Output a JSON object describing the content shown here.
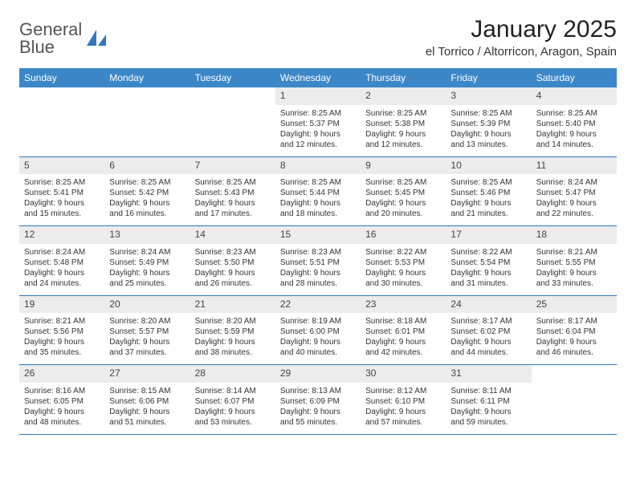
{
  "logo": {
    "line1": "General",
    "line2": "Blue"
  },
  "title": "January 2025",
  "location": "el Torrico / Altorricon, Aragon, Spain",
  "colors": {
    "header_bg": "#3b87c8",
    "header_text": "#ffffff",
    "daynum_bg": "#ececec",
    "rule": "#2f78bc",
    "logo_blue": "#2f78bc"
  },
  "day_headers": [
    "Sunday",
    "Monday",
    "Tuesday",
    "Wednesday",
    "Thursday",
    "Friday",
    "Saturday"
  ],
  "weeks": [
    [
      null,
      null,
      null,
      {
        "n": "1",
        "sr": "8:25 AM",
        "ss": "5:37 PM",
        "dl": "9 hours and 12 minutes."
      },
      {
        "n": "2",
        "sr": "8:25 AM",
        "ss": "5:38 PM",
        "dl": "9 hours and 12 minutes."
      },
      {
        "n": "3",
        "sr": "8:25 AM",
        "ss": "5:39 PM",
        "dl": "9 hours and 13 minutes."
      },
      {
        "n": "4",
        "sr": "8:25 AM",
        "ss": "5:40 PM",
        "dl": "9 hours and 14 minutes."
      }
    ],
    [
      {
        "n": "5",
        "sr": "8:25 AM",
        "ss": "5:41 PM",
        "dl": "9 hours and 15 minutes."
      },
      {
        "n": "6",
        "sr": "8:25 AM",
        "ss": "5:42 PM",
        "dl": "9 hours and 16 minutes."
      },
      {
        "n": "7",
        "sr": "8:25 AM",
        "ss": "5:43 PM",
        "dl": "9 hours and 17 minutes."
      },
      {
        "n": "8",
        "sr": "8:25 AM",
        "ss": "5:44 PM",
        "dl": "9 hours and 18 minutes."
      },
      {
        "n": "9",
        "sr": "8:25 AM",
        "ss": "5:45 PM",
        "dl": "9 hours and 20 minutes."
      },
      {
        "n": "10",
        "sr": "8:25 AM",
        "ss": "5:46 PM",
        "dl": "9 hours and 21 minutes."
      },
      {
        "n": "11",
        "sr": "8:24 AM",
        "ss": "5:47 PM",
        "dl": "9 hours and 22 minutes."
      }
    ],
    [
      {
        "n": "12",
        "sr": "8:24 AM",
        "ss": "5:48 PM",
        "dl": "9 hours and 24 minutes."
      },
      {
        "n": "13",
        "sr": "8:24 AM",
        "ss": "5:49 PM",
        "dl": "9 hours and 25 minutes."
      },
      {
        "n": "14",
        "sr": "8:23 AM",
        "ss": "5:50 PM",
        "dl": "9 hours and 26 minutes."
      },
      {
        "n": "15",
        "sr": "8:23 AM",
        "ss": "5:51 PM",
        "dl": "9 hours and 28 minutes."
      },
      {
        "n": "16",
        "sr": "8:22 AM",
        "ss": "5:53 PM",
        "dl": "9 hours and 30 minutes."
      },
      {
        "n": "17",
        "sr": "8:22 AM",
        "ss": "5:54 PM",
        "dl": "9 hours and 31 minutes."
      },
      {
        "n": "18",
        "sr": "8:21 AM",
        "ss": "5:55 PM",
        "dl": "9 hours and 33 minutes."
      }
    ],
    [
      {
        "n": "19",
        "sr": "8:21 AM",
        "ss": "5:56 PM",
        "dl": "9 hours and 35 minutes."
      },
      {
        "n": "20",
        "sr": "8:20 AM",
        "ss": "5:57 PM",
        "dl": "9 hours and 37 minutes."
      },
      {
        "n": "21",
        "sr": "8:20 AM",
        "ss": "5:59 PM",
        "dl": "9 hours and 38 minutes."
      },
      {
        "n": "22",
        "sr": "8:19 AM",
        "ss": "6:00 PM",
        "dl": "9 hours and 40 minutes."
      },
      {
        "n": "23",
        "sr": "8:18 AM",
        "ss": "6:01 PM",
        "dl": "9 hours and 42 minutes."
      },
      {
        "n": "24",
        "sr": "8:17 AM",
        "ss": "6:02 PM",
        "dl": "9 hours and 44 minutes."
      },
      {
        "n": "25",
        "sr": "8:17 AM",
        "ss": "6:04 PM",
        "dl": "9 hours and 46 minutes."
      }
    ],
    [
      {
        "n": "26",
        "sr": "8:16 AM",
        "ss": "6:05 PM",
        "dl": "9 hours and 48 minutes."
      },
      {
        "n": "27",
        "sr": "8:15 AM",
        "ss": "6:06 PM",
        "dl": "9 hours and 51 minutes."
      },
      {
        "n": "28",
        "sr": "8:14 AM",
        "ss": "6:07 PM",
        "dl": "9 hours and 53 minutes."
      },
      {
        "n": "29",
        "sr": "8:13 AM",
        "ss": "6:09 PM",
        "dl": "9 hours and 55 minutes."
      },
      {
        "n": "30",
        "sr": "8:12 AM",
        "ss": "6:10 PM",
        "dl": "9 hours and 57 minutes."
      },
      {
        "n": "31",
        "sr": "8:11 AM",
        "ss": "6:11 PM",
        "dl": "9 hours and 59 minutes."
      },
      null
    ]
  ],
  "labels": {
    "sunrise": "Sunrise:",
    "sunset": "Sunset:",
    "daylight": "Daylight:"
  }
}
